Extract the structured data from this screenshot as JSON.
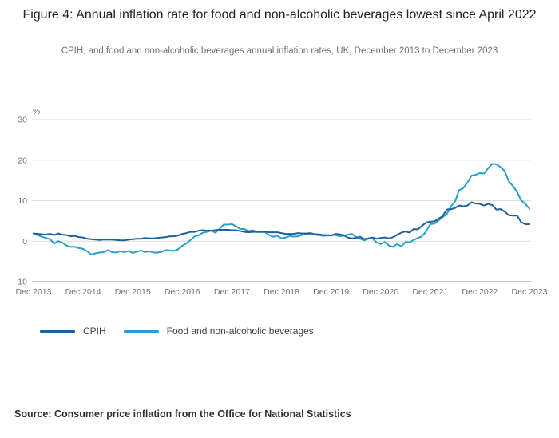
{
  "figure": {
    "title": "Figure 4: Annual inflation rate for food and non-alcoholic beverages lowest since April 2022",
    "subtitle": "CPIH, and food and non-alcoholic beverages annual inflation rates, UK, December 2013 to December 2023",
    "source": "Source: Consumer price inflation from the Office for National Statistics"
  },
  "chart_data": {
    "type": "line",
    "title": "Figure 4: Annual inflation rate for food and non-alcoholic beverages lowest since April 2022",
    "subtitle": "CPIH, and food and non-alcoholic beverages annual inflation rates, UK, December 2013 to December 2023",
    "unit_label": "%",
    "ylim": [
      -10,
      30
    ],
    "y_ticks": [
      30,
      20,
      10,
      0,
      -10
    ],
    "x_tick_labels": [
      "Dec 2013",
      "Dec 2014",
      "Dec 2015",
      "Dec 2016",
      "Dec 2017",
      "Dec 2018",
      "Dec 2019",
      "Dec 2020",
      "Dec 2021",
      "Dec 2022",
      "Dec 2023"
    ],
    "x_tick_month_interval": 12,
    "grid": true,
    "legend_position": "bottom-left",
    "x_frequency": "monthly",
    "series": [
      {
        "name": "CPIH",
        "color": "#206095",
        "values": [
          1.9,
          1.8,
          1.7,
          1.6,
          1.8,
          1.5,
          1.9,
          1.6,
          1.5,
          1.2,
          1.3,
          1.0,
          0.9,
          0.6,
          0.5,
          0.4,
          0.3,
          0.4,
          0.4,
          0.4,
          0.3,
          0.2,
          0.2,
          0.4,
          0.5,
          0.6,
          0.6,
          0.8,
          0.7,
          0.7,
          0.8,
          0.9,
          1.0,
          1.2,
          1.2,
          1.4,
          1.8,
          2.0,
          2.3,
          2.3,
          2.6,
          2.7,
          2.6,
          2.6,
          2.7,
          2.8,
          2.8,
          2.8,
          2.7,
          2.7,
          2.5,
          2.3,
          2.2,
          2.3,
          2.3,
          2.3,
          2.4,
          2.2,
          2.2,
          2.2,
          2.0,
          1.8,
          1.8,
          1.8,
          2.0,
          1.9,
          1.9,
          2.0,
          1.7,
          1.7,
          1.5,
          1.5,
          1.4,
          1.8,
          1.7,
          1.5,
          0.9,
          0.7,
          0.8,
          1.1,
          0.5,
          0.7,
          0.9,
          0.6,
          0.8,
          0.9,
          0.7,
          1.0,
          1.6,
          2.1,
          2.4,
          2.1,
          3.0,
          2.9,
          3.8,
          4.6,
          4.8,
          4.9,
          5.5,
          6.2,
          7.8,
          7.9,
          8.2,
          8.8,
          8.6,
          8.8,
          9.6,
          9.3,
          9.2,
          8.8,
          9.2,
          8.9,
          7.8,
          7.9,
          7.3,
          6.4,
          6.3,
          6.3,
          4.7,
          4.2,
          4.2
        ]
      },
      {
        "name": "Food and non-alcoholic beverages",
        "color": "#27A0CC",
        "values": [
          1.9,
          1.5,
          1.1,
          0.8,
          0.5,
          -0.6,
          0.0,
          -0.4,
          -1.1,
          -1.4,
          -1.4,
          -1.7,
          -1.9,
          -2.5,
          -3.3,
          -3.0,
          -2.8,
          -2.7,
          -2.2,
          -2.7,
          -2.8,
          -2.5,
          -2.7,
          -2.4,
          -2.9,
          -2.6,
          -2.3,
          -2.7,
          -2.5,
          -2.8,
          -2.8,
          -2.6,
          -2.2,
          -2.3,
          -2.4,
          -2.0,
          -1.1,
          -0.5,
          0.3,
          1.2,
          1.5,
          2.1,
          2.3,
          2.6,
          2.1,
          3.0,
          4.1,
          4.1,
          4.2,
          3.7,
          3.0,
          3.0,
          2.5,
          2.7,
          2.3,
          2.3,
          2.2,
          1.5,
          1.1,
          1.3,
          0.7,
          0.9,
          1.3,
          1.1,
          1.2,
          1.6,
          1.7,
          1.9,
          1.6,
          1.5,
          1.3,
          1.4,
          1.4,
          1.6,
          1.2,
          1.3,
          1.6,
          1.8,
          1.1,
          0.6,
          0.2,
          0.6,
          0.7,
          -0.3,
          -0.7,
          -0.2,
          -1.1,
          -1.4,
          -0.7,
          -1.3,
          -0.2,
          -0.3,
          0.3,
          0.8,
          1.2,
          2.4,
          4.2,
          4.3,
          5.1,
          5.9,
          6.7,
          8.6,
          9.8,
          12.6,
          13.1,
          14.5,
          16.2,
          16.4,
          16.8,
          16.7,
          18.0,
          19.1,
          19.0,
          18.3,
          17.3,
          14.8,
          13.6,
          12.1,
          10.1,
          9.2,
          8.0
        ]
      }
    ]
  }
}
